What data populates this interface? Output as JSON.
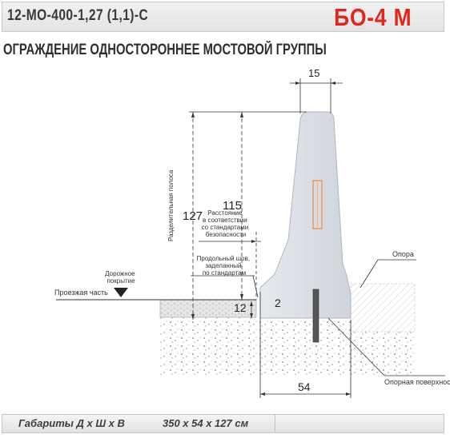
{
  "header": {
    "code": "12-МО-400-1,27 (1,1)-С",
    "model": "БО-4 М"
  },
  "title": "ОГРАЖДЕНИЕ ОДНОСТОРОННЕЕ МОСТОВОЙ ГРУППЫ",
  "drawing": {
    "dim_top_width": "15",
    "dim_total_height": "127",
    "dim_block_height": "115",
    "dim_curb": "12",
    "dim_gap": "2",
    "dim_base_width": "54",
    "label_divider_strip": "Разделительная полоса",
    "label_safety_distance": [
      "Расстояние",
      "в соответствии",
      "со стандартами",
      "безопасности"
    ],
    "label_seam": [
      "Продольный шов,",
      "заделанный",
      "по стандартам"
    ],
    "label_road_surface": [
      "Дорожное",
      "покрытие"
    ],
    "label_carriageway": "Проезжая часть",
    "label_support": "Опора",
    "label_support_surface": "Опорная поверхность"
  },
  "footer": {
    "label": "Габариты  Д х Ш х В",
    "value": "350 х 54 х 127 см"
  },
  "colors": {
    "accent": "#e1261c",
    "concrete": "#d8dce2",
    "line": "#333333"
  }
}
